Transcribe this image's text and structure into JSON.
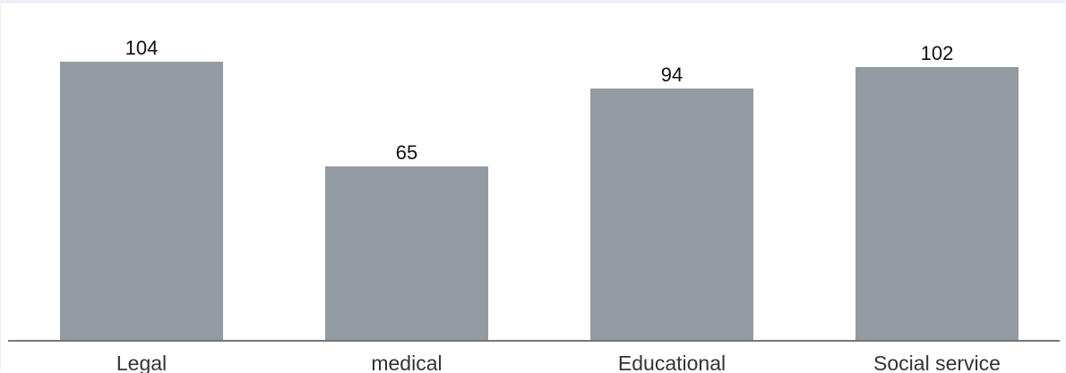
{
  "chart_data": {
    "type": "bar",
    "categories": [
      "Legal",
      "medical",
      "Educational",
      "Social service"
    ],
    "values": [
      104,
      65,
      94,
      102
    ],
    "data_labels": [
      "104",
      "65",
      "94",
      "102"
    ],
    "title": "",
    "xlabel": "",
    "ylabel": "",
    "ylim": [
      0,
      110
    ],
    "grid": false,
    "legend": "none",
    "bar_color": "#939ca2",
    "axis_color": "#777777"
  }
}
